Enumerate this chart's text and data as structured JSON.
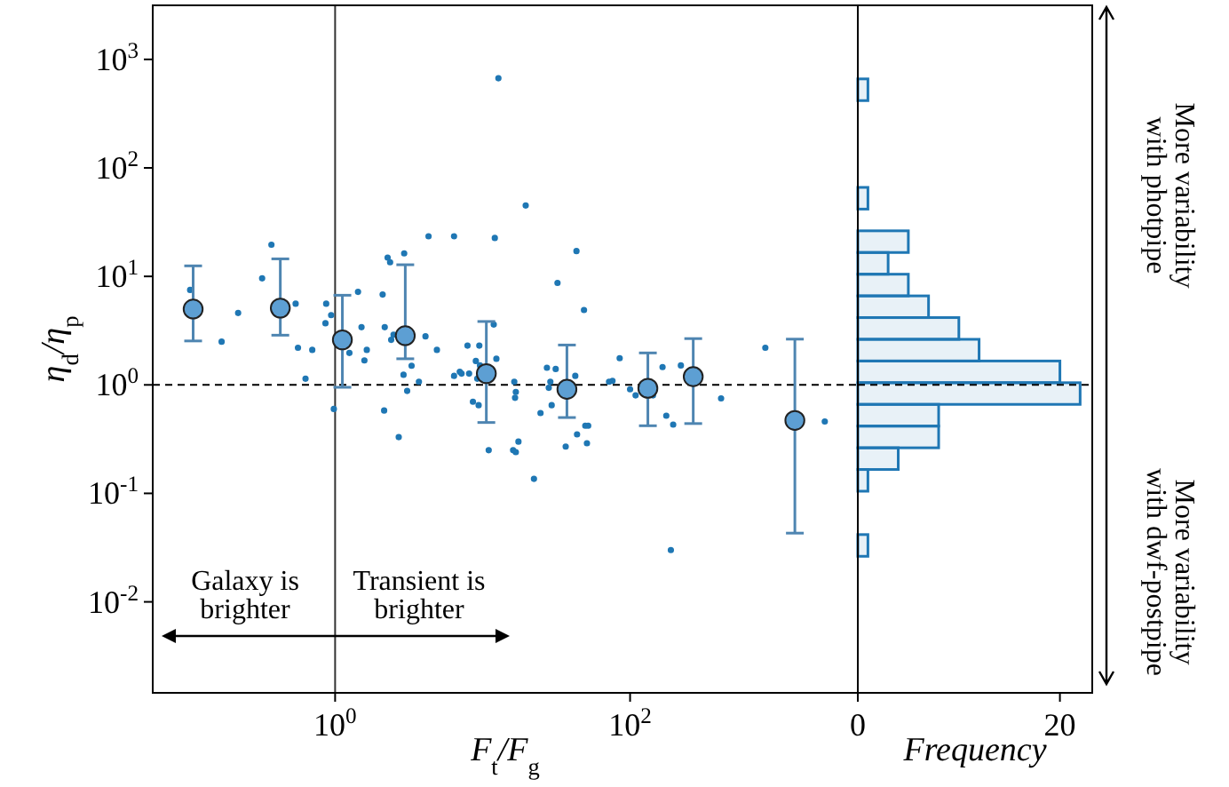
{
  "chart_data": [
    {
      "type": "scatter",
      "xlabel": "F$_{t}$/F$_{g}$",
      "ylabel": "η$_{d}$/η$_{p}$",
      "log": "xy",
      "marker": "circle",
      "xlim": [
        0.058,
        3500
      ],
      "ylim": [
        0.00145,
        3150
      ],
      "xticks": [
        {
          "value": 1,
          "label": "10$^{0}$"
        },
        {
          "value": 100,
          "label": "10$^{2}$"
        }
      ],
      "yticks": [
        {
          "value": 0.01,
          "label": "10$^{-2}$"
        },
        {
          "value": 0.1,
          "label": "10$^{-1}$"
        },
        {
          "value": 1,
          "label": "10$^{0}$"
        },
        {
          "value": 10,
          "label": "10$^{1}$"
        },
        {
          "value": 100,
          "label": "10$^{2}$"
        },
        {
          "value": 1000,
          "label": "10$^{3}$"
        }
      ],
      "series": [
        {
          "type": "scatter",
          "color": "#1f77b4",
          "x": [
            0.104,
            0.17,
            0.22,
            0.32,
            0.37,
            0.54,
            0.56,
            0.63,
            0.7,
            0.86,
            0.87,
            0.94,
            0.98,
            1.25,
            1.43,
            1.51,
            1.58,
            1.64,
            2.1,
            2.17,
            2.15,
            2.27,
            2.36,
            2.4,
            2.49,
            2.7,
            2.94,
            2.91,
            3.08,
            3.3,
            3.7,
            4.1,
            4.3,
            4.9,
            6.4,
            6.4,
            7.0,
            7.2,
            7.9,
            9.5,
            9.0,
            9.6,
            8.1,
            9.2,
            8.6,
            9.4,
            11.9,
            12.4,
            12.8,
            12.1,
            11.0,
            16.4,
            16.8,
            16.6,
            17.5,
            16.1,
            16.8,
            19.6,
            22.3,
            24.7,
            27.3,
            28.1,
            28.8,
            29.4,
            31.3,
            32.2,
            36.6,
            42.5,
            43.3,
            43.7,
            48.7,
            49.7,
            52,
            51,
            72,
            76,
            85,
            100,
            109,
            143,
            166,
            176,
            196,
            189,
            221,
            414,
            826,
            2090
          ],
          "values": [
            7.5,
            2.5,
            4.6,
            9.6,
            19.6,
            5.6,
            2.2,
            1.14,
            2.1,
            3.7,
            5.6,
            4.4,
            0.6,
            1.97,
            7.2,
            3.4,
            1.68,
            2.1,
            6.8,
            3.4,
            0.58,
            14.9,
            13.5,
            2.6,
            2.9,
            0.33,
            16.3,
            1.24,
            0.88,
            1.5,
            1.07,
            2.8,
            23.4,
            2.1,
            23.4,
            1.21,
            1.32,
            1.27,
            2.3,
            2.3,
            1.66,
            1.51,
            1.27,
            1.14,
            0.7,
            0.65,
            3.6,
            1.74,
            670,
            22.6,
            0.25,
            1.07,
            0.86,
            0.76,
            0.3,
            0.25,
            0.24,
            45,
            0.136,
            0.55,
            1.44,
            0.94,
            1.07,
            0.65,
            1.4,
            8.7,
            0.27,
            1.21,
            17.1,
            0.35,
            4.9,
            0.42,
            0.42,
            0.29,
            1.07,
            1.09,
            1.76,
            0.91,
            0.8,
            0.8,
            1.46,
            0.52,
            0.43,
            0.03,
            1.51,
            0.75,
            2.2,
            0.46
          ]
        },
        {
          "type": "scatter",
          "color": "#5d9fd3",
          "x": [
            0.109,
            0.425,
            1.12,
            2.99,
            10.6,
            37.3,
            132,
            268,
            1310
          ],
          "values": [
            5.0,
            5.1,
            2.6,
            2.84,
            1.27,
            0.91,
            0.93,
            1.19,
            0.47
          ],
          "errors": [
            [
              2.54,
              12.5
            ],
            [
              2.87,
              14.5
            ],
            [
              0.95,
              6.7
            ],
            [
              1.74,
              12.8
            ],
            [
              0.45,
              3.84
            ],
            [
              0.5,
              2.33
            ],
            [
              0.42,
              1.97
            ],
            [
              0.44,
              2.67
            ],
            [
              0.043,
              2.64
            ]
          ]
        }
      ],
      "ref_lines": [
        {
          "axis": "y",
          "value": 1,
          "line_style": "dashed",
          "color": "#000000"
        },
        {
          "axis": "x",
          "value": 1,
          "line_style": "solid",
          "color": "#333333"
        }
      ],
      "annotations": [
        "Galaxy is\nbrighter",
        "Transient is\nbrighter"
      ]
    },
    {
      "type": "histogram",
      "orientation": "horizontal",
      "log": "y",
      "xlabel": "Frequency",
      "color": "#1f77b4",
      "tick_labels": "x",
      "bins": [
        0.0263,
        0.0417,
        0.0661,
        0.1047,
        0.166,
        0.263,
        0.417,
        0.661,
        1.047,
        1.66,
        2.63,
        4.17,
        6.61,
        10.47,
        16.6,
        26.3,
        41.7,
        66.1,
        104.7,
        166,
        263,
        417,
        661
      ],
      "values": [
        1,
        0,
        0,
        1,
        4,
        8,
        8,
        22,
        20,
        12,
        10,
        7,
        5,
        3,
        5,
        0,
        1,
        0,
        0,
        0,
        0,
        1
      ],
      "xlim": [
        0,
        23.2
      ],
      "xticks": [
        0,
        20
      ],
      "ylim": [
        0.00145,
        3150
      ],
      "ref_lines": [
        {
          "axis": "y",
          "value": 1,
          "line_style": "dashed",
          "color": "#000000"
        }
      ],
      "annotations": [
        "More variability\nwith photpipe",
        "More variability\nwith dwf-postpipe"
      ]
    }
  ]
}
